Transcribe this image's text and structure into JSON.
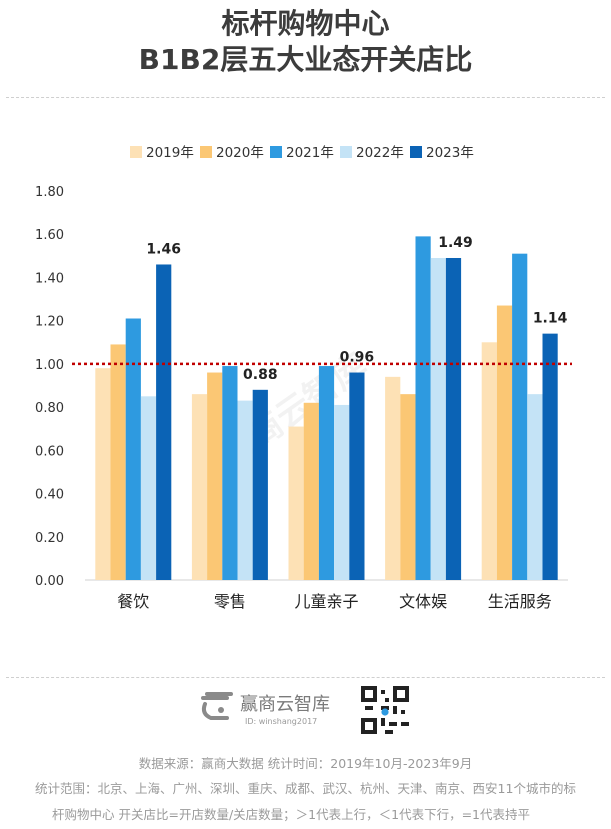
{
  "title_line1": "标杆购物中心",
  "title_line2": "B1B2层五大业态开关店比",
  "chart_data": {
    "type": "bar",
    "categories": [
      "餐饮",
      "零售",
      "儿童亲子",
      "文体娱",
      "生活服务"
    ],
    "series": [
      {
        "name": "2019年",
        "color": "#fde1b5",
        "values": [
          0.98,
          0.86,
          0.71,
          0.94,
          1.1
        ]
      },
      {
        "name": "2020年",
        "color": "#fbc774",
        "values": [
          1.09,
          0.96,
          0.82,
          0.86,
          1.27
        ]
      },
      {
        "name": "2021年",
        "color": "#2e9ae0",
        "values": [
          1.21,
          0.99,
          0.99,
          1.59,
          1.51
        ]
      },
      {
        "name": "2022年",
        "color": "#c4e3f6",
        "values": [
          0.85,
          0.83,
          0.81,
          1.49,
          0.86
        ]
      },
      {
        "name": "2023年",
        "color": "#0b63b5",
        "values": [
          1.46,
          0.88,
          0.96,
          1.49,
          1.14
        ]
      }
    ],
    "data_labels": [
      "1.46",
      "0.88",
      "0.96",
      "1.49",
      "1.14"
    ],
    "y_ticks": [
      "0.00",
      "0.20",
      "0.40",
      "0.60",
      "0.80",
      "1.00",
      "1.20",
      "1.40",
      "1.60",
      "1.80"
    ],
    "ylim": [
      0,
      1.8
    ],
    "reference_line": 1.0,
    "reference_line_color": "#c00000",
    "legend_position": "top",
    "grid": false
  },
  "watermark": "赢商云智库",
  "brand": {
    "name": "赢商云智库",
    "id_text": "ID: winshang2017"
  },
  "footer": {
    "line1": "数据来源：赢商大数据  统计时间：2019年10月-2023年9月",
    "line2": "统计范围：北京、上海、广州、深圳、重庆、成都、武汉、杭州、天津、南京、西安11个城市的标",
    "line3": "杆购物中心    开关店比=开店数量/关店数量；＞1代表上行，＜1代表下行，=1代表持平"
  }
}
